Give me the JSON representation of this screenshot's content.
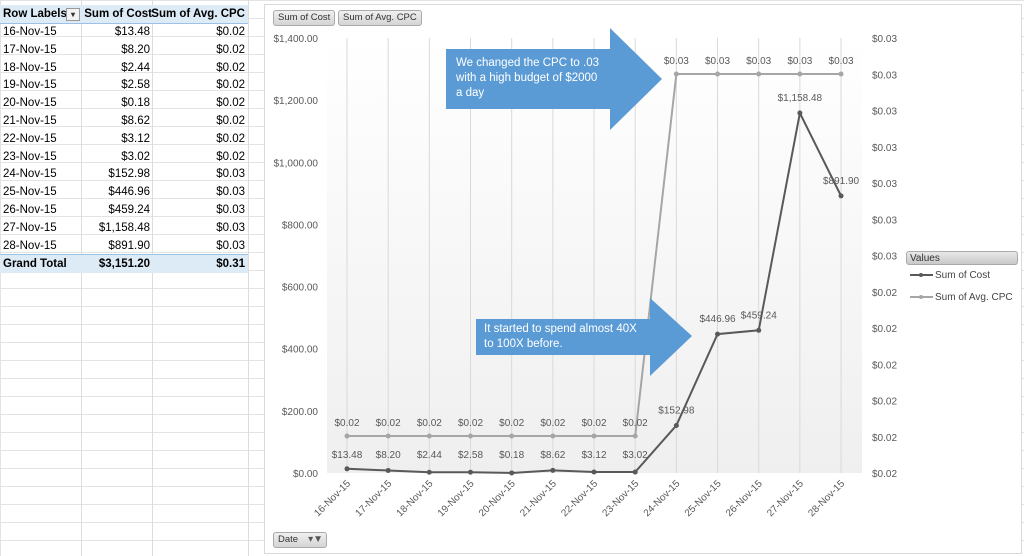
{
  "pivot": {
    "headers": {
      "row_labels": "Row Labels",
      "cost": "Sum of Cost",
      "cpc": "Sum of Avg. CPC"
    },
    "rows": [
      {
        "date": "16-Nov-15",
        "cost": "$13.48",
        "cpc": "$0.02"
      },
      {
        "date": "17-Nov-15",
        "cost": "$8.20",
        "cpc": "$0.02"
      },
      {
        "date": "18-Nov-15",
        "cost": "$2.44",
        "cpc": "$0.02"
      },
      {
        "date": "19-Nov-15",
        "cost": "$2.58",
        "cpc": "$0.02"
      },
      {
        "date": "20-Nov-15",
        "cost": "$0.18",
        "cpc": "$0.02"
      },
      {
        "date": "21-Nov-15",
        "cost": "$8.62",
        "cpc": "$0.02"
      },
      {
        "date": "22-Nov-15",
        "cost": "$3.12",
        "cpc": "$0.02"
      },
      {
        "date": "23-Nov-15",
        "cost": "$3.02",
        "cpc": "$0.02"
      },
      {
        "date": "24-Nov-15",
        "cost": "$152.98",
        "cpc": "$0.03"
      },
      {
        "date": "25-Nov-15",
        "cost": "$446.96",
        "cpc": "$0.03"
      },
      {
        "date": "26-Nov-15",
        "cost": "$459.24",
        "cpc": "$0.03"
      },
      {
        "date": "27-Nov-15",
        "cost": "$1,158.48",
        "cpc": "$0.03"
      },
      {
        "date": "28-Nov-15",
        "cost": "$891.90",
        "cpc": "$0.03"
      }
    ],
    "total": {
      "label": "Grand Total",
      "cost": "$3,151.20",
      "cpc": "$0.31"
    }
  },
  "chart": {
    "field_buttons": [
      "Sum of Cost",
      "Sum of Avg. CPC"
    ],
    "axis_field_button": "Date",
    "legend_title": "Values",
    "callouts": {
      "top": "We changed the CPC to .03 with a high budget of $2000 a day",
      "bottom": "It started to spend almost 40X to 100X before."
    },
    "colors": {
      "cost_line": "#595959",
      "cpc_line": "#a6a6a6",
      "callout": "#5b9bd5"
    }
  },
  "chart_data": {
    "type": "line",
    "title": "",
    "xlabel": "Date",
    "ylabel": "",
    "categories": [
      "16-Nov-15",
      "17-Nov-15",
      "18-Nov-15",
      "19-Nov-15",
      "20-Nov-15",
      "21-Nov-15",
      "22-Nov-15",
      "23-Nov-15",
      "24-Nov-15",
      "25-Nov-15",
      "26-Nov-15",
      "27-Nov-15",
      "28-Nov-15"
    ],
    "series": [
      {
        "name": "Sum of Cost",
        "axis": "left",
        "values": [
          13.48,
          8.2,
          2.44,
          2.58,
          0.18,
          8.62,
          3.12,
          3.02,
          152.98,
          446.96,
          459.24,
          1158.48,
          891.9
        ],
        "labels": [
          "$13.48",
          "$8.20",
          "$2.44",
          "$2.58",
          "$0.18",
          "$8.62",
          "$3.12",
          "$3.02",
          "$152.98",
          "$446.96",
          "$459.24",
          "$1,158.48",
          "$891.90"
        ]
      },
      {
        "name": "Sum of Avg. CPC",
        "axis": "right",
        "values": [
          0.02,
          0.02,
          0.02,
          0.02,
          0.02,
          0.02,
          0.02,
          0.02,
          0.03,
          0.03,
          0.03,
          0.03,
          0.03
        ],
        "labels": [
          "$0.02",
          "$0.02",
          "$0.02",
          "$0.02",
          "$0.02",
          "$0.02",
          "$0.02",
          "$0.02",
          "$0.03",
          "$0.03",
          "$0.03",
          "$0.03",
          "$0.03"
        ]
      }
    ],
    "ylim": [
      0,
      1400
    ],
    "left_ticks": [
      "$0.00",
      "$200.00",
      "$400.00",
      "$600.00",
      "$800.00",
      "$1,000.00",
      "$1,200.00",
      "$1,400.00"
    ],
    "right_ticks": [
      "$0.02",
      "$0.02",
      "$0.02",
      "$0.02",
      "$0.02",
      "$0.02",
      "$0.03",
      "$0.03",
      "$0.03",
      "$0.03",
      "$0.03",
      "$0.03",
      "$0.03"
    ],
    "legend_position": "right",
    "grid": "vertical"
  }
}
